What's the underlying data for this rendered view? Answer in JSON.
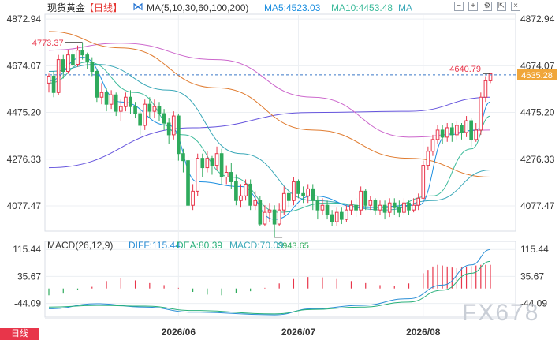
{
  "header": {
    "symbol": "现货黄金",
    "period": "【日线】",
    "ma_label": "MA(5,10,30,60,100,200)",
    "ma5": "MA5:4523.03",
    "ma10": "MA10:4453.48",
    "ma_more": "MA"
  },
  "controls": {
    "minus": "−",
    "plus": "+",
    "settings": "⚙",
    "expand": "⇱",
    "close": "×"
  },
  "macd_header": {
    "label": "MACD(26,12,9)",
    "diff": "DIFF:115.44",
    "dea": "DEA:80.39",
    "macd": "MACD:70.09"
  },
  "watermark": "FX678",
  "bottom_left": "日线",
  "colors": {
    "up": "#e8354a",
    "down": "#2eaa5c",
    "ma5": "#1d8fe0",
    "ma10": "#3dbb9b",
    "ma30": "#3aa8b8",
    "ma60": "#e07b2f",
    "ma100": "#cc66cc",
    "ma200": "#6655dd",
    "diff": "#2c8fd6",
    "dea": "#28b07a",
    "price_tag": "#f0a63a"
  },
  "chart_data": {
    "type": "candlestick",
    "y_ticks": [
      "4872.94",
      "4674.07",
      "4475.20",
      "4276.33",
      "4077.47"
    ],
    "ylim": [
      3980,
      4880
    ],
    "x_ticks": [
      "2026/06",
      "2026/07",
      "2026/08"
    ],
    "x_tick_index": [
      27,
      52,
      78
    ],
    "last_price": "4635.28",
    "annotations": {
      "high": {
        "label": "4773.37",
        "index": 7
      },
      "low": {
        "label": "3943.65",
        "index": 47
      },
      "recent": {
        "label": "4640.79",
        "index": 92
      }
    },
    "candles": [
      [
        4600,
        4630,
        4560,
        4640
      ],
      [
        4630,
        4560,
        4540,
        4650
      ],
      [
        4560,
        4700,
        4550,
        4720
      ],
      [
        4700,
        4650,
        4620,
        4720
      ],
      [
        4650,
        4720,
        4640,
        4740
      ],
      [
        4720,
        4680,
        4660,
        4740
      ],
      [
        4680,
        4740,
        4670,
        4760
      ],
      [
        4740,
        4720,
        4700,
        4773
      ],
      [
        4720,
        4690,
        4660,
        4730
      ],
      [
        4690,
        4650,
        4630,
        4710
      ],
      [
        4650,
        4540,
        4520,
        4660
      ],
      [
        4540,
        4560,
        4510,
        4600
      ],
      [
        4560,
        4510,
        4480,
        4580
      ],
      [
        4510,
        4550,
        4490,
        4570
      ],
      [
        4550,
        4480,
        4460,
        4560
      ],
      [
        4480,
        4500,
        4440,
        4530
      ],
      [
        4500,
        4540,
        4480,
        4560
      ],
      [
        4540,
        4500,
        4470,
        4570
      ],
      [
        4500,
        4470,
        4450,
        4520
      ],
      [
        4470,
        4420,
        4380,
        4490
      ],
      [
        4420,
        4510,
        4400,
        4530
      ],
      [
        4510,
        4480,
        4450,
        4540
      ],
      [
        4480,
        4500,
        4450,
        4530
      ],
      [
        4500,
        4470,
        4440,
        4520
      ],
      [
        4470,
        4430,
        4400,
        4490
      ],
      [
        4430,
        4380,
        4340,
        4450
      ],
      [
        4380,
        4460,
        4360,
        4480
      ],
      [
        4460,
        4300,
        4270,
        4470
      ],
      [
        4300,
        4270,
        4220,
        4320
      ],
      [
        4270,
        4080,
        4060,
        4290
      ],
      [
        4080,
        4140,
        4060,
        4170
      ],
      [
        4140,
        4280,
        4120,
        4300
      ],
      [
        4280,
        4240,
        4200,
        4300
      ],
      [
        4240,
        4280,
        4220,
        4310
      ],
      [
        4280,
        4250,
        4210,
        4290
      ],
      [
        4250,
        4300,
        4230,
        4330
      ],
      [
        4300,
        4200,
        4170,
        4320
      ],
      [
        4200,
        4220,
        4170,
        4250
      ],
      [
        4220,
        4180,
        4150,
        4260
      ],
      [
        4180,
        4100,
        4080,
        4210
      ],
      [
        4100,
        4120,
        4070,
        4170
      ],
      [
        4120,
        4170,
        4100,
        4190
      ],
      [
        4170,
        4080,
        4060,
        4190
      ],
      [
        4080,
        4100,
        4060,
        4140
      ],
      [
        4100,
        4000,
        3990,
        4120
      ],
      [
        4000,
        4050,
        3990,
        4080
      ],
      [
        4050,
        4060,
        4010,
        4090
      ],
      [
        4060,
        4000,
        3944,
        4080
      ],
      [
        4000,
        4060,
        3990,
        4090
      ],
      [
        4060,
        4130,
        4040,
        4160
      ],
      [
        4130,
        4100,
        4070,
        4150
      ],
      [
        4100,
        4180,
        4080,
        4200
      ],
      [
        4180,
        4130,
        4110,
        4190
      ],
      [
        4130,
        4120,
        4090,
        4160
      ],
      [
        4120,
        4150,
        4090,
        4170
      ],
      [
        4150,
        4100,
        4060,
        4170
      ],
      [
        4100,
        4060,
        4020,
        4120
      ],
      [
        4060,
        4080,
        4040,
        4110
      ],
      [
        4080,
        4040,
        4020,
        4100
      ],
      [
        4040,
        4010,
        3990,
        4060
      ],
      [
        4010,
        4050,
        3990,
        4070
      ],
      [
        4050,
        4020,
        4000,
        4070
      ],
      [
        4020,
        4060,
        4010,
        4080
      ],
      [
        4060,
        4080,
        4040,
        4100
      ],
      [
        4080,
        4060,
        4030,
        4110
      ],
      [
        4060,
        4140,
        4040,
        4160
      ],
      [
        4140,
        4080,
        4060,
        4150
      ],
      [
        4080,
        4100,
        4060,
        4120
      ],
      [
        4100,
        4060,
        4040,
        4110
      ],
      [
        4060,
        4080,
        4040,
        4100
      ],
      [
        4080,
        4050,
        4020,
        4100
      ],
      [
        4050,
        4090,
        4030,
        4110
      ],
      [
        4090,
        4070,
        4040,
        4110
      ],
      [
        4070,
        4050,
        4030,
        4100
      ],
      [
        4050,
        4090,
        4040,
        4110
      ],
      [
        4090,
        4060,
        4040,
        4100
      ],
      [
        4060,
        4080,
        4050,
        4110
      ],
      [
        4080,
        4110,
        4060,
        4130
      ],
      [
        4110,
        4250,
        4100,
        4270
      ],
      [
        4250,
        4310,
        4230,
        4330
      ],
      [
        4310,
        4360,
        4290,
        4380
      ],
      [
        4360,
        4400,
        4340,
        4420
      ],
      [
        4400,
        4370,
        4340,
        4420
      ],
      [
        4370,
        4410,
        4350,
        4430
      ],
      [
        4410,
        4380,
        4350,
        4430
      ],
      [
        4380,
        4420,
        4360,
        4440
      ],
      [
        4420,
        4390,
        4360,
        4430
      ],
      [
        4390,
        4440,
        4370,
        4460
      ],
      [
        4440,
        4360,
        4330,
        4450
      ],
      [
        4360,
        4400,
        4350,
        4430
      ],
      [
        4400,
        4540,
        4380,
        4560
      ],
      [
        4540,
        4610,
        4520,
        4630
      ],
      [
        4610,
        4640,
        4600,
        4641
      ]
    ],
    "ma_series": [
      {
        "key": "ma200",
        "points": [
          [
            0,
            4240
          ],
          [
            30,
            4410
          ],
          [
            55,
            4475
          ],
          [
            75,
            4480
          ],
          [
            92,
            4540
          ]
        ]
      },
      {
        "key": "ma100",
        "points": [
          [
            0,
            4740
          ],
          [
            15,
            4770
          ],
          [
            35,
            4700
          ],
          [
            55,
            4540
          ],
          [
            75,
            4370
          ],
          [
            92,
            4400
          ]
        ]
      },
      {
        "key": "ma60",
        "points": [
          [
            0,
            4820
          ],
          [
            15,
            4750
          ],
          [
            35,
            4580
          ],
          [
            55,
            4400
          ],
          [
            75,
            4280
          ],
          [
            92,
            4200
          ]
        ]
      },
      {
        "key": "ma30",
        "points": [
          [
            0,
            4650
          ],
          [
            10,
            4680
          ],
          [
            25,
            4570
          ],
          [
            40,
            4300
          ],
          [
            55,
            4100
          ],
          [
            70,
            4060
          ],
          [
            80,
            4100
          ],
          [
            92,
            4230
          ]
        ]
      },
      {
        "key": "ma10",
        "points": [
          [
            0,
            4600
          ],
          [
            8,
            4690
          ],
          [
            18,
            4560
          ],
          [
            28,
            4380
          ],
          [
            38,
            4200
          ],
          [
            48,
            4050
          ],
          [
            58,
            4090
          ],
          [
            70,
            4070
          ],
          [
            80,
            4120
          ],
          [
            88,
            4320
          ],
          [
            92,
            4460
          ]
        ]
      },
      {
        "key": "ma5",
        "points": [
          [
            0,
            4610
          ],
          [
            7,
            4710
          ],
          [
            15,
            4520
          ],
          [
            25,
            4420
          ],
          [
            31,
            4180
          ],
          [
            40,
            4160
          ],
          [
            47,
            4020
          ],
          [
            55,
            4120
          ],
          [
            65,
            4070
          ],
          [
            77,
            4080
          ],
          [
            83,
            4380
          ],
          [
            89,
            4400
          ],
          [
            92,
            4520
          ]
        ]
      }
    ],
    "macd": {
      "y_ticks": [
        "115.44",
        "35.67",
        "-44.09"
      ],
      "ylim": [
        -80,
        130
      ],
      "hist": [
        -20,
        -25,
        -22,
        -15,
        -10,
        -8,
        -5,
        -2,
        0,
        5,
        12,
        18,
        22,
        25,
        28,
        30,
        28,
        26,
        24,
        22,
        20,
        16,
        14,
        12,
        10,
        8,
        5,
        2,
        -2,
        -6,
        -10,
        -14,
        -16,
        -18,
        -20,
        -22,
        -20,
        -18,
        -16,
        -14,
        -12,
        -10,
        -8,
        -5,
        -2,
        2,
        6,
        10,
        15,
        20,
        25,
        28,
        30,
        32,
        34,
        35,
        34,
        33,
        32,
        30,
        28,
        26,
        24,
        22,
        20,
        18,
        16,
        14,
        12,
        10,
        8,
        6,
        8,
        10,
        12,
        15,
        20,
        30,
        45,
        55,
        65,
        70,
        68,
        65,
        62,
        60,
        62,
        64,
        66,
        68,
        70,
        70,
        70
      ],
      "diff": [
        [
          0,
          -60
        ],
        [
          10,
          -45
        ],
        [
          20,
          -55
        ],
        [
          30,
          -70
        ],
        [
          47,
          -78
        ],
        [
          55,
          -60
        ],
        [
          65,
          -50
        ],
        [
          75,
          -30
        ],
        [
          82,
          10
        ],
        [
          88,
          70
        ],
        [
          92,
          115
        ]
      ],
      "dea": [
        [
          0,
          -55
        ],
        [
          10,
          -50
        ],
        [
          20,
          -52
        ],
        [
          30,
          -65
        ],
        [
          47,
          -75
        ],
        [
          55,
          -62
        ],
        [
          65,
          -55
        ],
        [
          75,
          -40
        ],
        [
          82,
          -5
        ],
        [
          88,
          45
        ],
        [
          92,
          80
        ]
      ]
    }
  }
}
